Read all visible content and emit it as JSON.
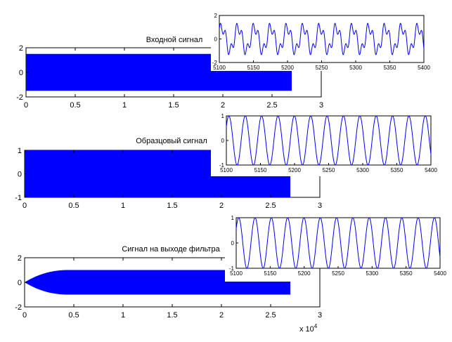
{
  "chart_data": [
    {
      "type": "area",
      "title": "Входной сигнал",
      "x_ticks": [
        "0",
        "0.5",
        "1",
        "1.5",
        "2",
        "2.5",
        "3"
      ],
      "x_tick_values": [
        0,
        0.5,
        1,
        1.5,
        2,
        2.5,
        3
      ],
      "y_ticks": [
        "-2",
        "0",
        "2"
      ],
      "y_tick_values": [
        -2,
        0,
        2
      ],
      "xlim": [
        0,
        3
      ],
      "ylim": [
        -2,
        2
      ],
      "envelope": {
        "x": [
          0,
          2.7
        ],
        "upper": 1.5,
        "lower": -1.5
      },
      "color": "#0000ff",
      "inset": {
        "type": "line",
        "xlim": [
          5100,
          5400
        ],
        "ylim": [
          -2,
          2
        ],
        "x_ticks": [
          "5100",
          "5150",
          "5200",
          "5250",
          "5300",
          "5350",
          "5400"
        ],
        "x_tick_values": [
          5100,
          5150,
          5200,
          5250,
          5300,
          5350,
          5400
        ],
        "y_ticks": [
          "-2",
          "0",
          "2"
        ],
        "y_tick_values": [
          -2,
          0,
          2
        ],
        "components": [
          {
            "amplitude": 1.0,
            "period": 24
          },
          {
            "amplitude": 0.5,
            "period": 8
          }
        ],
        "color": "#0000ff"
      }
    },
    {
      "type": "area",
      "title": "Образцовый сигнал",
      "x_ticks": [
        "0",
        "0.5",
        "1",
        "1.5",
        "2",
        "2.5",
        "3"
      ],
      "x_tick_values": [
        0,
        0.5,
        1,
        1.5,
        2,
        2.5,
        3
      ],
      "y_ticks": [
        "-1",
        "0",
        "1"
      ],
      "y_tick_values": [
        -1,
        0,
        1
      ],
      "xlim": [
        0,
        3
      ],
      "ylim": [
        -1,
        1
      ],
      "envelope": {
        "x": [
          0,
          2.7
        ],
        "upper": 1.0,
        "lower": -1.0
      },
      "color": "#0000ff",
      "inset": {
        "type": "line",
        "xlim": [
          5100,
          5400
        ],
        "ylim": [
          -1,
          1
        ],
        "x_ticks": [
          "5100",
          "5150",
          "5200",
          "5250",
          "5300",
          "5350",
          "5400"
        ],
        "x_tick_values": [
          5100,
          5150,
          5200,
          5250,
          5300,
          5350,
          5400
        ],
        "y_ticks": [
          "-1",
          "0",
          "1"
        ],
        "y_tick_values": [
          -1,
          0,
          1
        ],
        "components": [
          {
            "amplitude": 1.0,
            "period": 24
          }
        ],
        "color": "#0000ff"
      }
    },
    {
      "type": "area",
      "title": "Сигнал на выходе фильтра",
      "x_ticks": [
        "0",
        "0.5",
        "1",
        "1.5",
        "2",
        "2.5",
        "3"
      ],
      "x_tick_values": [
        0,
        0.5,
        1,
        1.5,
        2,
        2.5,
        3
      ],
      "y_ticks": [
        "-2",
        "0",
        "2"
      ],
      "y_tick_values": [
        -2,
        0,
        2
      ],
      "xlim": [
        0,
        3
      ],
      "ylim": [
        -2,
        2
      ],
      "envelope": {
        "x": [
          0,
          2.7
        ],
        "upper": 1.0,
        "lower": -1.0,
        "rise_end": 0.45
      },
      "color": "#0000ff",
      "x_multiplier": "x 10",
      "x_multiplier_exp": "4",
      "inset": {
        "type": "line",
        "xlim": [
          5100,
          5400
        ],
        "ylim": [
          -1,
          1
        ],
        "x_ticks": [
          "5100",
          "5150",
          "5200",
          "5250",
          "5300",
          "5350",
          "5400"
        ],
        "x_tick_values": [
          5100,
          5150,
          5200,
          5250,
          5300,
          5350,
          5400
        ],
        "y_ticks": [
          "-1",
          "0",
          "1"
        ],
        "y_tick_values": [
          -1,
          0,
          1
        ],
        "components": [
          {
            "amplitude": 1.0,
            "period": 24
          }
        ],
        "color": "#0000ff"
      }
    }
  ]
}
